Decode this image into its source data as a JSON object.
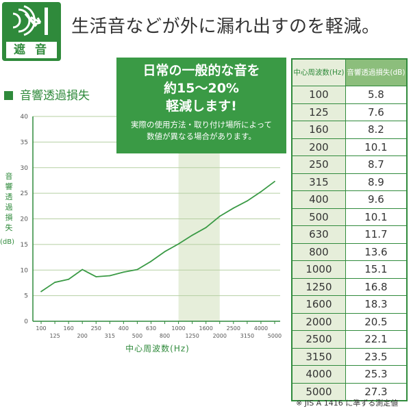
{
  "badge": {
    "label": "遮 音",
    "icon": "sound-block-icon"
  },
  "headline": "生活音などが外に漏れ出すのを軽減。",
  "callout": {
    "lines": [
      "日常の一般的な音を",
      "約15～20%",
      "軽減します!"
    ],
    "note_lines": [
      "実際の使用方法・取り付け場所によって",
      "数値が異なる場合があります。"
    ]
  },
  "footnote": "※ JIS A 1416 に準ずる測定値",
  "table": {
    "header_freq": "中心周波数(Hz)",
    "header_loss": "音響透過損失(dB)"
  },
  "chart_data": {
    "type": "line",
    "title": "音響透過損失",
    "ylabel": "音響透過損失",
    "ylabel_unit": "(dB)",
    "xlabel": "中心周波数(Hz)",
    "x": [
      "100",
      "125",
      "160",
      "200",
      "250",
      "315",
      "400",
      "500",
      "630",
      "800",
      "1000",
      "1250",
      "1600",
      "2000",
      "2500",
      "3150",
      "4000",
      "5000"
    ],
    "values": [
      5.8,
      7.6,
      8.2,
      10.1,
      8.7,
      8.9,
      9.6,
      10.1,
      11.7,
      13.6,
      15.1,
      16.8,
      18.3,
      20.5,
      22.1,
      23.5,
      25.3,
      27.3
    ],
    "ylim": [
      0,
      40
    ],
    "yticks": [
      0,
      5,
      10,
      15,
      20,
      25,
      30,
      35,
      40
    ],
    "highlight_band": [
      "1000",
      "2000"
    ],
    "grid": true,
    "colors": {
      "line": "#3a9a45",
      "band": "#e6eeda",
      "grid": "#b5cfa2"
    }
  }
}
